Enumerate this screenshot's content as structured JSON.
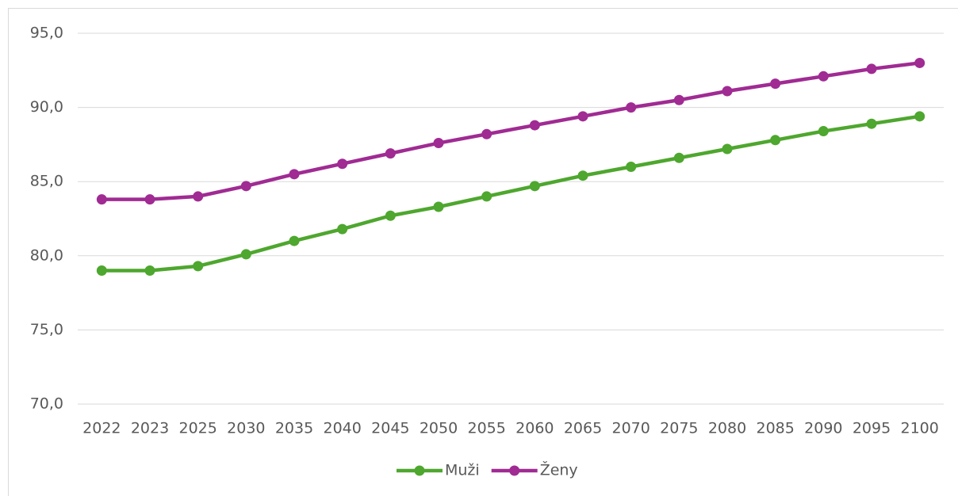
{
  "chart_data": {
    "type": "line",
    "categories": [
      "2022",
      "2023",
      "2025",
      "2030",
      "2035",
      "2040",
      "2045",
      "2050",
      "2055",
      "2060",
      "2065",
      "2070",
      "2075",
      "2080",
      "2085",
      "2090",
      "2095",
      "2100"
    ],
    "series": [
      {
        "name": "Muži",
        "color": "#4ea72e",
        "values": [
          79.0,
          79.0,
          79.3,
          80.1,
          81.0,
          81.8,
          82.7,
          83.3,
          84.0,
          84.7,
          85.4,
          86.0,
          86.6,
          87.2,
          87.8,
          88.4,
          88.9,
          89.4
        ]
      },
      {
        "name": "Ženy",
        "color": "#a02b93",
        "values": [
          83.8,
          83.8,
          84.0,
          84.7,
          85.5,
          86.2,
          86.9,
          87.6,
          88.2,
          88.8,
          89.4,
          90.0,
          90.5,
          91.1,
          91.6,
          92.1,
          92.6,
          93.0
        ]
      }
    ],
    "ylim": [
      70,
      95
    ],
    "yticks": [
      {
        "value": 70,
        "label": "70,0"
      },
      {
        "value": 75,
        "label": "75,0"
      },
      {
        "value": 80,
        "label": "80,0"
      },
      {
        "value": 85,
        "label": "85,0"
      },
      {
        "value": 90,
        "label": "90,0"
      },
      {
        "value": 95,
        "label": "95,0"
      }
    ],
    "grid": true,
    "legend": "bottom"
  }
}
